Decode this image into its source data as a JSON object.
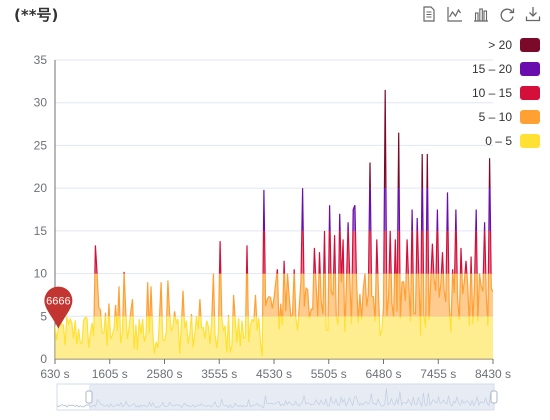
{
  "header": {
    "title": "(**号)"
  },
  "toolbox": [
    {
      "name": "data-view-icon"
    },
    {
      "name": "line-chart-icon"
    },
    {
      "name": "bar-chart-icon"
    },
    {
      "name": "restore-icon"
    },
    {
      "name": "save-image-icon"
    }
  ],
  "marker_label": "6666",
  "colors": {
    "axis": "#6e7079",
    "grid": "#e0e6f1",
    "marker": "#c23531",
    "zoom_fill": "#d5ddec"
  },
  "legend": [
    {
      "label": "> 20",
      "color": "#7b0a2a"
    },
    {
      "label": "15 – 20",
      "color": "#6a0dad"
    },
    {
      "label": "10 – 15",
      "color": "#d4103a"
    },
    {
      "label": "5 – 10",
      "color": "#ffa033"
    },
    {
      "label": "0 – 5",
      "color": "#ffe033"
    }
  ],
  "chart_data": {
    "type": "area",
    "title": "(**号)",
    "xlabel": "",
    "ylabel": "",
    "x_unit": "s",
    "xlim": [
      630,
      8430
    ],
    "ylim": [
      0,
      35
    ],
    "y_ticks": [
      0,
      5,
      10,
      15,
      20,
      25,
      30,
      35
    ],
    "x_ticks": [
      630,
      1605,
      2580,
      3555,
      4530,
      5505,
      6480,
      7455,
      8430
    ],
    "x_tick_labels": [
      "630 s",
      "1605 s",
      "2580 s",
      "3555 s",
      "4530 s",
      "5505 s",
      "6480 s",
      "7455 s",
      "8430 s"
    ],
    "grid": true,
    "legend_position": "right",
    "visual_map_pieces": [
      {
        "label": "0 – 5",
        "min": 0,
        "max": 5,
        "color": "#ffe033"
      },
      {
        "label": "5 – 10",
        "min": 5,
        "max": 10,
        "color": "#ffa033"
      },
      {
        "label": "10 – 15",
        "min": 10,
        "max": 15,
        "color": "#d4103a"
      },
      {
        "label": "15 – 20",
        "min": 15,
        "max": 20,
        "color": "#6a0dad"
      },
      {
        "label": "> 20",
        "min": 20,
        "max": null,
        "color": "#7b0a2a"
      }
    ],
    "series": [
      {
        "values_x_step": 30,
        "x_start": 630,
        "peaks": [
          {
            "x": 1360,
            "y": 13.3
          },
          {
            "x": 1370,
            "y": 10.0
          },
          {
            "x": 1600,
            "y": 6.5
          },
          {
            "x": 1780,
            "y": 8.5
          },
          {
            "x": 1870,
            "y": 10.2
          },
          {
            "x": 2000,
            "y": 7.0
          },
          {
            "x": 2270,
            "y": 9.0
          },
          {
            "x": 2350,
            "y": 8.5
          },
          {
            "x": 2520,
            "y": 9.0
          },
          {
            "x": 2650,
            "y": 9.2
          },
          {
            "x": 2900,
            "y": 8.0
          },
          {
            "x": 3200,
            "y": 7.0
          },
          {
            "x": 3460,
            "y": 10.0
          },
          {
            "x": 3580,
            "y": 13.8
          },
          {
            "x": 3800,
            "y": 7.5
          },
          {
            "x": 4050,
            "y": 13.3
          },
          {
            "x": 4200,
            "y": 7.5
          },
          {
            "x": 4350,
            "y": 19.8
          },
          {
            "x": 4580,
            "y": 10.5
          },
          {
            "x": 4700,
            "y": 11.5
          },
          {
            "x": 4770,
            "y": 10.0
          },
          {
            "x": 4900,
            "y": 10.5
          },
          {
            "x": 5050,
            "y": 20.0
          },
          {
            "x": 5240,
            "y": 13.0
          },
          {
            "x": 5330,
            "y": 12.5
          },
          {
            "x": 5420,
            "y": 15.0
          },
          {
            "x": 5520,
            "y": 18.0
          },
          {
            "x": 5610,
            "y": 14.5
          },
          {
            "x": 5700,
            "y": 17.0
          },
          {
            "x": 5760,
            "y": 14.0
          },
          {
            "x": 5840,
            "y": 16.0
          },
          {
            "x": 5930,
            "y": 17.5
          },
          {
            "x": 5980,
            "y": 18.0
          },
          {
            "x": 6140,
            "y": 10.0
          },
          {
            "x": 6230,
            "y": 23.0
          },
          {
            "x": 6360,
            "y": 14.0
          },
          {
            "x": 6500,
            "y": 31.5
          },
          {
            "x": 6590,
            "y": 15.0
          },
          {
            "x": 6680,
            "y": 14.0
          },
          {
            "x": 6760,
            "y": 26.5
          },
          {
            "x": 6900,
            "y": 14.0
          },
          {
            "x": 7000,
            "y": 17.5
          },
          {
            "x": 7090,
            "y": 16.5
          },
          {
            "x": 7180,
            "y": 24.0
          },
          {
            "x": 7260,
            "y": 24.0
          },
          {
            "x": 7350,
            "y": 13.5
          },
          {
            "x": 7430,
            "y": 17.5
          },
          {
            "x": 7530,
            "y": 12.5
          },
          {
            "x": 7610,
            "y": 19.5
          },
          {
            "x": 7700,
            "y": 10.5
          },
          {
            "x": 7780,
            "y": 17.5
          },
          {
            "x": 7860,
            "y": 13.0
          },
          {
            "x": 7950,
            "y": 11.5
          },
          {
            "x": 8040,
            "y": 12.0
          },
          {
            "x": 8120,
            "y": 17.5
          },
          {
            "x": 8200,
            "y": 10.0
          },
          {
            "x": 8280,
            "y": 16.0
          },
          {
            "x": 8380,
            "y": 23.5
          }
        ],
        "segments": [
          {
            "from": 630,
            "to": 1300,
            "low": 0.8,
            "high": 5.5
          },
          {
            "from": 1300,
            "to": 3000,
            "low": 0.5,
            "high": 6.5
          },
          {
            "from": 3000,
            "to": 4350,
            "low": 0.3,
            "high": 5.5
          },
          {
            "from": 4350,
            "to": 8430,
            "low": 2.5,
            "high": 9.5
          }
        ]
      }
    ],
    "mark_point": {
      "label": "6666",
      "x": 690,
      "y": 5.2
    },
    "data_zoom": {
      "start": 630,
      "end": 8430
    }
  }
}
